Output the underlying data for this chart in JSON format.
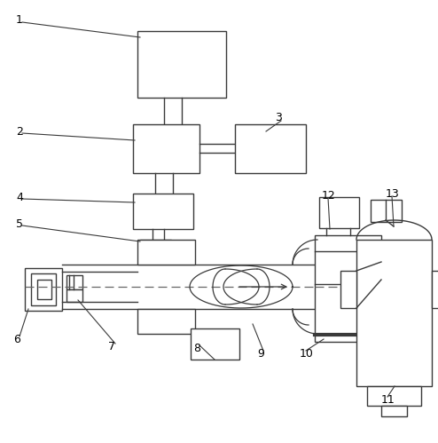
{
  "bg_color": "#ffffff",
  "line_color": "#3a3a3a",
  "label_color": "#000000",
  "lw": 1.0
}
